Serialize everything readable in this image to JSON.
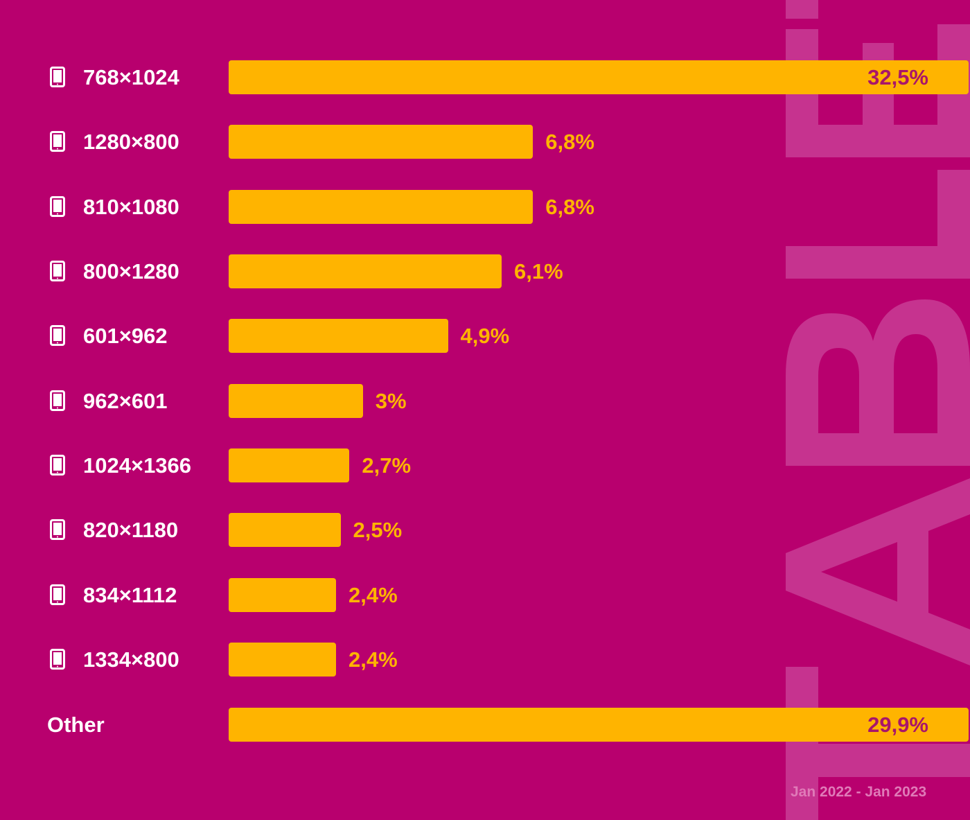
{
  "watermark": "TABLET",
  "colors": {
    "background": "#b8006e",
    "bar": "#ffb400",
    "value_outside": "#ffb400",
    "value_inside": "#a8166a",
    "watermark": "#c6338f"
  },
  "footer": "Jan 2022 - Jan 2023",
  "chart_data": {
    "type": "bar",
    "orientation": "horizontal",
    "title": "",
    "xlabel": "",
    "ylabel": "",
    "categories": [
      "768×1024",
      "1280×800",
      "810×1080",
      "800×1280",
      "601×962",
      "962×601",
      "1024×1366",
      "820×1180",
      "834×1112",
      "1334×800",
      "Other"
    ],
    "values": [
      32.5,
      6.8,
      6.8,
      6.1,
      4.9,
      3,
      2.7,
      2.5,
      2.4,
      2.4,
      29.9
    ],
    "value_labels": [
      "32,5%",
      "6,8%",
      "6,8%",
      "6,1%",
      "4,9%",
      "3%",
      "2,7%",
      "2,5%",
      "2,4%",
      "2,4%",
      "29,9%"
    ],
    "category_icons": [
      "tablet-icon",
      "tablet-icon",
      "tablet-icon",
      "tablet-icon",
      "tablet-icon",
      "tablet-icon",
      "tablet-icon",
      "tablet-icon",
      "tablet-icon",
      "tablet-icon",
      ""
    ],
    "unit": "%",
    "grid": false,
    "legend": "none"
  }
}
